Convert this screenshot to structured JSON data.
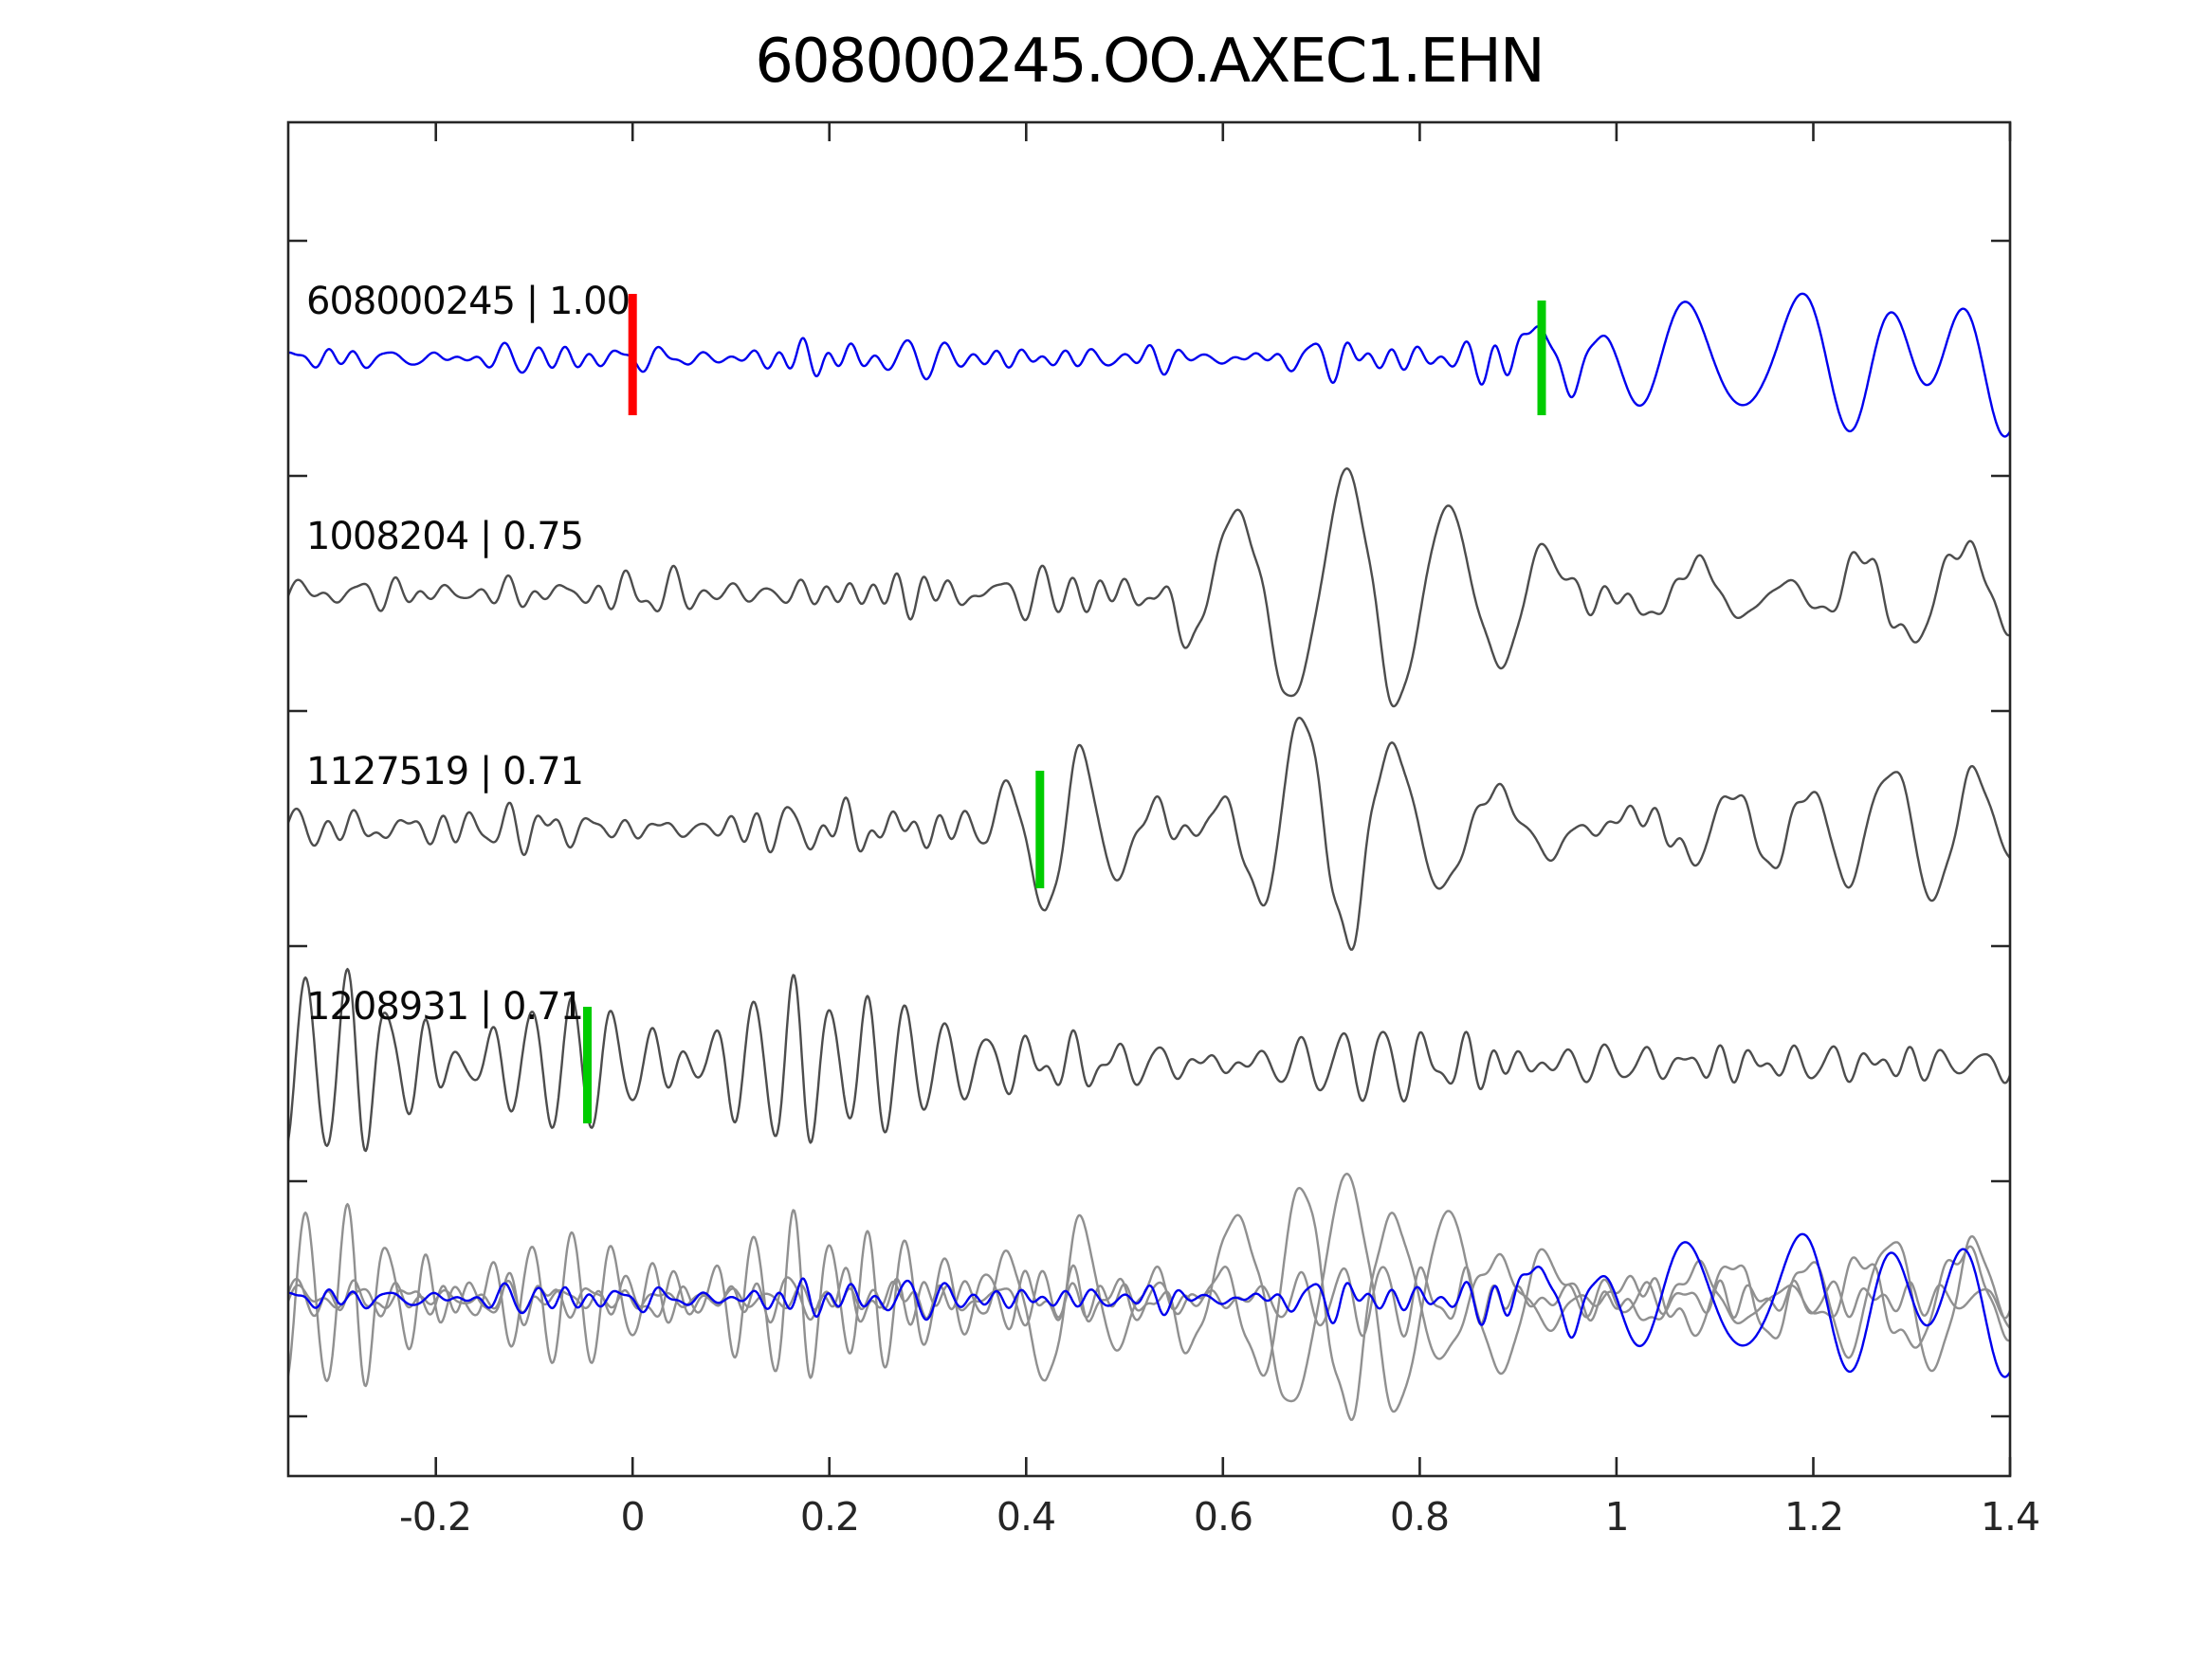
{
  "chart_data": {
    "type": "line",
    "title": "608000245.OO.AXEC1.EHN",
    "xlabel": "",
    "ylabel": "",
    "x_range": [
      -0.35,
      1.4
    ],
    "grid": false,
    "legend": "none",
    "x_ticks": {
      "values": [
        -0.2,
        0,
        0.2,
        0.4,
        0.6,
        0.8,
        1,
        1.2,
        1.4
      ],
      "labels": [
        "-0.2",
        "0",
        "0.2",
        "0.4",
        "0.6",
        "0.8",
        "1",
        "1.2",
        "1.4"
      ]
    },
    "y_axis": {
      "tick_count": 6,
      "labels_visible": false
    },
    "colors": {
      "reference_trace": "#0000EE",
      "matched_trace": "#4D4D4D",
      "overlay_trace": "#909090",
      "reference_pick": "#FF0000",
      "pick": "#00CC00",
      "axis": "#262626"
    },
    "traces": [
      {
        "id": "608000245",
        "correlation": "1.00",
        "label": "608000245 | 1.00",
        "color_role": "reference_trace",
        "row": 0,
        "bands": [
          {
            "fmin": 16,
            "fmax": 46,
            "n": 12,
            "seed": 11,
            "env": [
              [
                -0.35,
                10
              ],
              [
                0.0,
                10
              ],
              [
                0.1,
                13
              ],
              [
                0.3,
                11
              ],
              [
                0.55,
                12
              ],
              [
                0.8,
                13
              ],
              [
                0.9,
                16
              ],
              [
                1.0,
                0
              ],
              [
                1.4,
                0
              ]
            ]
          },
          {
            "fmin": 7.5,
            "fmax": 13.5,
            "n": 6,
            "seed": 12,
            "env": [
              [
                -0.35,
                0
              ],
              [
                0.86,
                0
              ],
              [
                0.93,
                60
              ],
              [
                1.0,
                95
              ],
              [
                1.07,
                85
              ],
              [
                1.15,
                70
              ],
              [
                1.25,
                88
              ],
              [
                1.4,
                72
              ]
            ]
          }
        ]
      },
      {
        "id": "1008204",
        "correlation": "0.75",
        "label": "1008204 | 0.75",
        "color_role": "matched_trace",
        "row": 1,
        "bands": [
          {
            "fmin": 15,
            "fmax": 45,
            "n": 12,
            "seed": 21,
            "env": [
              [
                -0.35,
                14
              ],
              [
                0.2,
                15
              ],
              [
                0.5,
                15
              ],
              [
                0.6,
                10
              ],
              [
                0.8,
                9
              ],
              [
                1.4,
                8
              ]
            ]
          },
          {
            "fmin": 7,
            "fmax": 12.5,
            "n": 6,
            "seed": 22,
            "env": [
              [
                -0.35,
                0
              ],
              [
                0.53,
                0
              ],
              [
                0.6,
                100
              ],
              [
                0.66,
                150
              ],
              [
                0.72,
                135
              ],
              [
                0.8,
                62
              ],
              [
                0.95,
                48
              ],
              [
                1.15,
                40
              ],
              [
                1.4,
                30
              ]
            ]
          }
        ]
      },
      {
        "id": "1127519",
        "correlation": "0.71",
        "label": "1127519 | 0.71",
        "color_role": "matched_trace",
        "row": 2,
        "bands": [
          {
            "fmin": 15,
            "fmax": 45,
            "n": 12,
            "seed": 31,
            "env": [
              [
                -0.35,
                14
              ],
              [
                0.05,
                18
              ],
              [
                0.2,
                21
              ],
              [
                0.33,
                15
              ],
              [
                0.44,
                10
              ],
              [
                1.4,
                9
              ]
            ]
          },
          {
            "fmin": 8,
            "fmax": 14,
            "n": 6,
            "seed": 32,
            "env": [
              [
                -0.35,
                0
              ],
              [
                0.36,
                0
              ],
              [
                0.42,
                112
              ],
              [
                0.47,
                112
              ],
              [
                0.56,
                58
              ],
              [
                0.66,
                88
              ],
              [
                0.78,
                56
              ],
              [
                0.95,
                60
              ],
              [
                1.1,
                50
              ],
              [
                1.3,
                46
              ],
              [
                1.4,
                38
              ]
            ]
          }
        ]
      },
      {
        "id": "1208931",
        "correlation": "0.71",
        "label": "1208931 | 0.71",
        "color_role": "matched_trace",
        "row": 3,
        "bands": [
          {
            "fmin": 21,
            "fmax": 27.5,
            "n": 5,
            "seed": 41,
            "env": [
              [
                -0.35,
                46
              ],
              [
                -0.1,
                52
              ],
              [
                0.04,
                62
              ],
              [
                0.1,
                128
              ],
              [
                0.18,
                138
              ],
              [
                0.25,
                112
              ],
              [
                0.3,
                48
              ],
              [
                0.38,
                24
              ],
              [
                0.6,
                19
              ],
              [
                1.0,
                18
              ],
              [
                1.4,
                16
              ]
            ]
          },
          {
            "fmin": 34,
            "fmax": 44,
            "n": 4,
            "seed": 42,
            "env": [
              [
                -0.35,
                9
              ],
              [
                1.4,
                9
              ]
            ]
          }
        ]
      }
    ],
    "overlay": {
      "row": 4,
      "layers": [
        {
          "trace_id": "1008204",
          "color_role": "overlay_trace"
        },
        {
          "trace_id": "1127519",
          "color_role": "overlay_trace"
        },
        {
          "trace_id": "1208931",
          "color_role": "overlay_trace"
        },
        {
          "trace_id": "608000245",
          "color_role": "reference_trace"
        }
      ]
    },
    "markers": [
      {
        "row": 0,
        "x": 0.0,
        "color_role": "reference_pick",
        "above": 68,
        "below": 60
      },
      {
        "row": 0,
        "x": 0.924,
        "color_role": "pick",
        "above": 61,
        "below": 60
      },
      {
        "row": 2,
        "x": 0.414,
        "color_role": "pick",
        "above": 61,
        "below": 63
      },
      {
        "row": 3,
        "x": -0.046,
        "color_role": "pick",
        "above": 60,
        "below": 63
      }
    ]
  }
}
